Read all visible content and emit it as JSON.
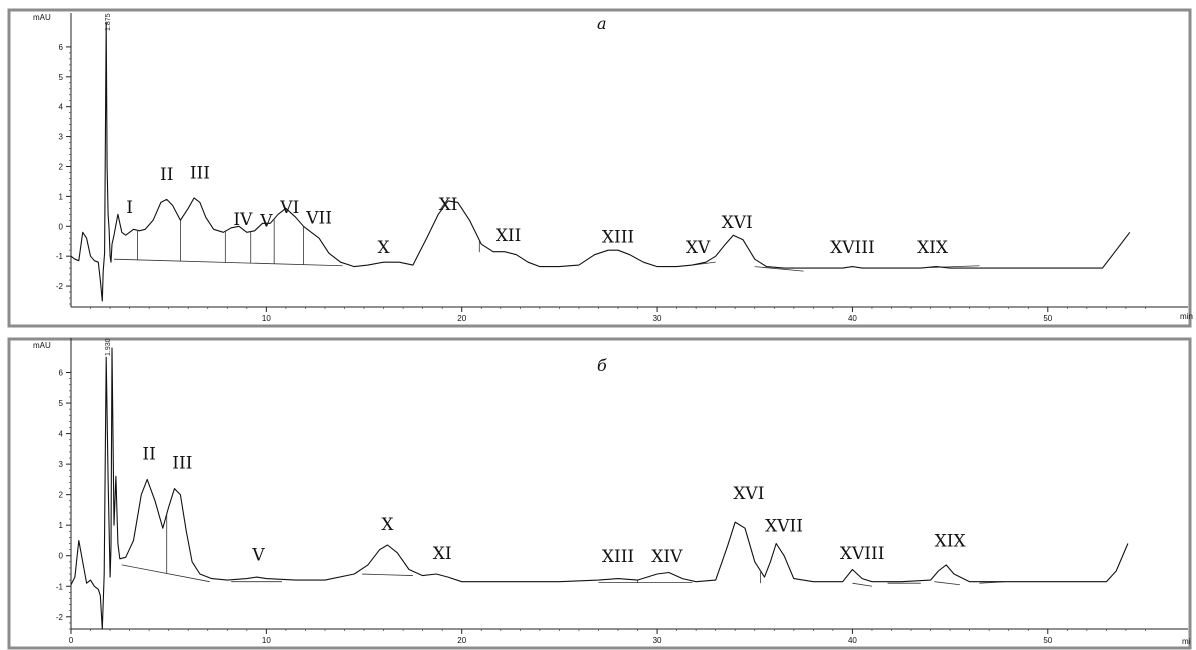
{
  "chart_data": [
    {
      "type": "line",
      "panel_label": "а",
      "ylabel": "mAU",
      "xlabel": "min",
      "xlim": [
        0,
        56
      ],
      "ylim": [
        -2.7,
        7.0
      ],
      "x_ticks": [
        "10",
        "20",
        "30",
        "40",
        "50"
      ],
      "x_tick_values": [
        10,
        20,
        30,
        40,
        50
      ],
      "y_ticks": [
        "6",
        "5",
        "4",
        "3",
        "2",
        "1",
        "0",
        "-1",
        "-2"
      ],
      "y_tick_values": [
        6,
        5,
        4,
        3,
        2,
        1,
        0,
        -1,
        -2
      ],
      "top_annotation": "1.875",
      "series": [
        {
          "x": [
            0.0,
            0.2,
            0.4,
            0.6,
            0.8,
            1.0,
            1.2,
            1.4,
            1.5,
            1.6,
            1.65,
            1.72,
            1.8,
            1.85,
            1.9,
            1.95,
            2.0,
            2.05,
            2.1,
            2.2,
            2.4,
            2.6,
            2.8,
            3.0,
            3.2,
            3.5,
            3.8,
            4.2,
            4.6,
            4.9,
            5.2,
            5.6,
            6.0,
            6.3,
            6.6,
            6.9,
            7.3,
            7.8,
            8.2,
            8.6,
            9.0,
            9.4,
            9.8,
            10.2,
            10.6,
            11.0,
            11.5,
            11.9,
            12.3,
            12.7,
            13.2,
            13.8,
            14.5,
            15.2,
            16.0,
            16.8,
            17.5,
            18.2,
            18.8,
            19.3,
            19.8,
            20.4,
            21.0,
            21.6,
            22.2,
            22.8,
            23.4,
            24.0,
            25.0,
            26.0,
            26.8,
            27.5,
            28.0,
            28.6,
            29.3,
            30.0,
            31.0,
            31.8,
            32.5,
            33.0,
            33.5,
            33.9,
            34.4,
            35.0,
            35.6,
            36.5,
            38.0,
            39.5,
            40.0,
            40.5,
            42.0,
            43.5,
            44.3,
            45.0,
            46.0,
            48.0,
            50.0,
            52.0,
            52.8,
            53.5,
            54.2
          ],
          "y": [
            -1.0,
            -1.1,
            -1.15,
            -0.2,
            -0.4,
            -1.0,
            -1.15,
            -1.2,
            -1.8,
            -2.5,
            -1.5,
            -0.9,
            6.8,
            2.0,
            0.4,
            -0.1,
            -1.0,
            -1.2,
            -0.6,
            -0.3,
            0.4,
            -0.2,
            -0.3,
            -0.2,
            -0.1,
            -0.15,
            -0.1,
            0.2,
            0.8,
            0.9,
            0.7,
            0.2,
            0.6,
            0.95,
            0.8,
            0.3,
            -0.1,
            -0.2,
            -0.05,
            0.0,
            -0.2,
            -0.15,
            0.1,
            0.1,
            0.4,
            0.6,
            0.3,
            0.0,
            -0.2,
            -0.4,
            -0.9,
            -1.2,
            -1.35,
            -1.3,
            -1.2,
            -1.2,
            -1.3,
            -0.4,
            0.4,
            0.85,
            0.8,
            0.2,
            -0.6,
            -0.85,
            -0.85,
            -0.95,
            -1.2,
            -1.35,
            -1.35,
            -1.3,
            -0.95,
            -0.8,
            -0.8,
            -0.95,
            -1.2,
            -1.35,
            -1.35,
            -1.3,
            -1.2,
            -1.0,
            -0.6,
            -0.3,
            -0.45,
            -1.1,
            -1.35,
            -1.4,
            -1.4,
            -1.4,
            -1.35,
            -1.4,
            -1.4,
            -1.4,
            -1.35,
            -1.4,
            -1.4,
            -1.4,
            -1.4,
            -1.4,
            -1.4,
            -0.8,
            -0.2
          ]
        }
      ],
      "baselines": [
        [
          [
            2.2,
            -1.1
          ],
          [
            13.9,
            -1.32
          ]
        ],
        [
          [
            31.8,
            -1.3
          ],
          [
            33.0,
            -1.2
          ]
        ],
        [
          [
            35.0,
            -1.35
          ],
          [
            37.5,
            -1.5
          ]
        ],
        [
          [
            44.0,
            -1.38
          ],
          [
            46.5,
            -1.32
          ]
        ]
      ],
      "drop_lines": [
        3.4,
        5.6,
        7.9,
        9.2,
        10.4,
        11.9,
        20.9,
        32.5
      ],
      "peak_labels": [
        {
          "text": "I",
          "x": 3.0,
          "y": 0.45
        },
        {
          "text": "II",
          "x": 4.9,
          "y": 1.55
        },
        {
          "text": "III",
          "x": 6.6,
          "y": 1.6
        },
        {
          "text": "IV",
          "x": 8.8,
          "y": 0.05
        },
        {
          "text": "V",
          "x": 10.0,
          "y": 0.0
        },
        {
          "text": "VI",
          "x": 11.2,
          "y": 0.45
        },
        {
          "text": "VII",
          "x": 12.7,
          "y": 0.1
        },
        {
          "text": "X",
          "x": 16.0,
          "y": -0.9
        },
        {
          "text": "XI",
          "x": 19.3,
          "y": 0.55
        },
        {
          "text": "XII",
          "x": 22.4,
          "y": -0.5
        },
        {
          "text": "XIII",
          "x": 28.0,
          "y": -0.55
        },
        {
          "text": "XV",
          "x": 32.1,
          "y": -0.9
        },
        {
          "text": "XVI",
          "x": 34.1,
          "y": -0.05
        },
        {
          "text": "XVIII",
          "x": 40.0,
          "y": -0.9
        },
        {
          "text": "XIX",
          "x": 44.1,
          "y": -0.9
        }
      ]
    },
    {
      "type": "line",
      "panel_label": "б",
      "ylabel": "mAU",
      "xlabel": "mi",
      "xlim": [
        0,
        56
      ],
      "ylim": [
        -2.4,
        7.0
      ],
      "x_ticks": [
        "0",
        "10",
        "20",
        "30",
        "40",
        "50"
      ],
      "x_tick_values": [
        0,
        10,
        20,
        30,
        40,
        50
      ],
      "y_ticks": [
        "6",
        "5",
        "4",
        "3",
        "2",
        "1",
        "0",
        "-1",
        "-2"
      ],
      "y_tick_values": [
        6,
        5,
        4,
        3,
        2,
        1,
        0,
        -1,
        -2
      ],
      "top_annotation": "1.930",
      "series": [
        {
          "x": [
            0.0,
            0.2,
            0.4,
            0.6,
            0.8,
            1.0,
            1.2,
            1.4,
            1.5,
            1.6,
            1.7,
            1.8,
            1.9,
            2.0,
            2.05,
            2.1,
            2.2,
            2.3,
            2.4,
            2.5,
            2.8,
            3.2,
            3.6,
            3.9,
            4.3,
            4.7,
            5.0,
            5.3,
            5.6,
            5.9,
            6.2,
            6.6,
            7.2,
            8.0,
            9.0,
            9.5,
            10.0,
            11.5,
            13.0,
            14.5,
            15.2,
            15.8,
            16.2,
            16.7,
            17.3,
            18.0,
            18.7,
            19.3,
            20.0,
            21.0,
            23.0,
            25.0,
            27.0,
            28.0,
            29.0,
            30.0,
            30.6,
            31.3,
            32.0,
            33.0,
            33.6,
            34.0,
            34.5,
            35.0,
            35.5,
            35.8,
            36.1,
            36.5,
            37.0,
            38.0,
            39.5,
            40.0,
            40.5,
            41.0,
            42.5,
            44.0,
            44.4,
            44.8,
            45.2,
            46.0,
            48.0,
            50.0,
            52.0,
            53.0,
            53.5,
            54.1
          ],
          "y": [
            -0.95,
            -0.7,
            0.5,
            -0.2,
            -0.9,
            -0.8,
            -1.0,
            -1.1,
            -1.3,
            -2.4,
            -0.6,
            6.5,
            2.5,
            -0.7,
            0.3,
            6.8,
            1.0,
            2.6,
            0.4,
            -0.1,
            -0.05,
            0.5,
            2.0,
            2.5,
            1.8,
            0.9,
            1.6,
            2.2,
            2.0,
            0.8,
            -0.2,
            -0.6,
            -0.75,
            -0.8,
            -0.75,
            -0.7,
            -0.75,
            -0.8,
            -0.8,
            -0.6,
            -0.3,
            0.2,
            0.35,
            0.1,
            -0.45,
            -0.65,
            -0.6,
            -0.7,
            -0.85,
            -0.85,
            -0.85,
            -0.85,
            -0.8,
            -0.75,
            -0.8,
            -0.6,
            -0.55,
            -0.75,
            -0.85,
            -0.8,
            0.3,
            1.1,
            0.9,
            -0.2,
            -0.7,
            -0.2,
            0.4,
            0.0,
            -0.75,
            -0.85,
            -0.85,
            -0.45,
            -0.75,
            -0.85,
            -0.85,
            -0.8,
            -0.5,
            -0.3,
            -0.6,
            -0.85,
            -0.85,
            -0.85,
            -0.85,
            -0.85,
            -0.5,
            0.4
          ]
        }
      ],
      "baselines": [
        [
          [
            2.6,
            -0.3
          ],
          [
            7.1,
            -0.85
          ]
        ],
        [
          [
            8.2,
            -0.85
          ],
          [
            10.8,
            -0.85
          ]
        ],
        [
          [
            14.9,
            -0.6
          ],
          [
            17.5,
            -0.65
          ]
        ],
        [
          [
            27.0,
            -0.88
          ],
          [
            31.8,
            -0.88
          ]
        ],
        [
          [
            40.0,
            -0.9
          ],
          [
            41.0,
            -1.0
          ]
        ],
        [
          [
            41.8,
            -0.9
          ],
          [
            43.5,
            -0.9
          ]
        ],
        [
          [
            44.2,
            -0.85
          ],
          [
            45.5,
            -0.95
          ]
        ],
        [
          [
            46.5,
            -0.9
          ],
          [
            47.8,
            -0.85
          ]
        ]
      ],
      "drop_lines": [
        4.9,
        29.0,
        35.3
      ],
      "peak_labels": [
        {
          "text": "II",
          "x": 4.0,
          "y": 3.15
        },
        {
          "text": "III",
          "x": 5.7,
          "y": 2.85
        },
        {
          "text": "V",
          "x": 9.6,
          "y": -0.15
        },
        {
          "text": "X",
          "x": 16.2,
          "y": 0.85
        },
        {
          "text": "XI",
          "x": 19.0,
          "y": -0.1
        },
        {
          "text": "XIII",
          "x": 28.0,
          "y": -0.2
        },
        {
          "text": "XIV",
          "x": 30.5,
          "y": -0.2
        },
        {
          "text": "XVI",
          "x": 34.7,
          "y": 1.85
        },
        {
          "text": "XVII",
          "x": 36.5,
          "y": 0.8
        },
        {
          "text": "XVIII",
          "x": 40.5,
          "y": -0.1
        },
        {
          "text": "XIX",
          "x": 45.0,
          "y": 0.3
        }
      ]
    }
  ]
}
